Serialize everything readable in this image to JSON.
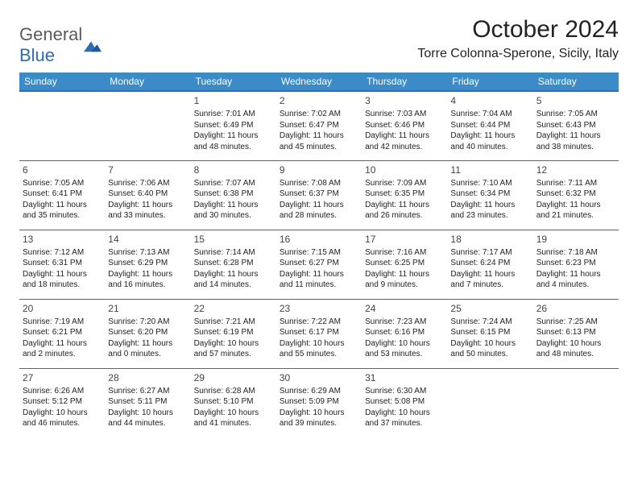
{
  "logo": {
    "word1": "General",
    "word2": "Blue"
  },
  "title": "October 2024",
  "location": "Torre Colonna-Sperone, Sicily, Italy",
  "colors": {
    "header_bg": "#3b8bc9",
    "border": "#2a6fb5",
    "logo_gray": "#5a5a5a",
    "logo_blue": "#2a6fb5",
    "text": "#222222",
    "bg": "#ffffff"
  },
  "dayHeaders": [
    "Sunday",
    "Monday",
    "Tuesday",
    "Wednesday",
    "Thursday",
    "Friday",
    "Saturday"
  ],
  "weeks": [
    [
      null,
      null,
      {
        "n": "1",
        "sr": "7:01 AM",
        "ss": "6:49 PM",
        "dl1": "Daylight: 11 hours",
        "dl2": "and 48 minutes."
      },
      {
        "n": "2",
        "sr": "7:02 AM",
        "ss": "6:47 PM",
        "dl1": "Daylight: 11 hours",
        "dl2": "and 45 minutes."
      },
      {
        "n": "3",
        "sr": "7:03 AM",
        "ss": "6:46 PM",
        "dl1": "Daylight: 11 hours",
        "dl2": "and 42 minutes."
      },
      {
        "n": "4",
        "sr": "7:04 AM",
        "ss": "6:44 PM",
        "dl1": "Daylight: 11 hours",
        "dl2": "and 40 minutes."
      },
      {
        "n": "5",
        "sr": "7:05 AM",
        "ss": "6:43 PM",
        "dl1": "Daylight: 11 hours",
        "dl2": "and 38 minutes."
      }
    ],
    [
      {
        "n": "6",
        "sr": "7:05 AM",
        "ss": "6:41 PM",
        "dl1": "Daylight: 11 hours",
        "dl2": "and 35 minutes."
      },
      {
        "n": "7",
        "sr": "7:06 AM",
        "ss": "6:40 PM",
        "dl1": "Daylight: 11 hours",
        "dl2": "and 33 minutes."
      },
      {
        "n": "8",
        "sr": "7:07 AM",
        "ss": "6:38 PM",
        "dl1": "Daylight: 11 hours",
        "dl2": "and 30 minutes."
      },
      {
        "n": "9",
        "sr": "7:08 AM",
        "ss": "6:37 PM",
        "dl1": "Daylight: 11 hours",
        "dl2": "and 28 minutes."
      },
      {
        "n": "10",
        "sr": "7:09 AM",
        "ss": "6:35 PM",
        "dl1": "Daylight: 11 hours",
        "dl2": "and 26 minutes."
      },
      {
        "n": "11",
        "sr": "7:10 AM",
        "ss": "6:34 PM",
        "dl1": "Daylight: 11 hours",
        "dl2": "and 23 minutes."
      },
      {
        "n": "12",
        "sr": "7:11 AM",
        "ss": "6:32 PM",
        "dl1": "Daylight: 11 hours",
        "dl2": "and 21 minutes."
      }
    ],
    [
      {
        "n": "13",
        "sr": "7:12 AM",
        "ss": "6:31 PM",
        "dl1": "Daylight: 11 hours",
        "dl2": "and 18 minutes."
      },
      {
        "n": "14",
        "sr": "7:13 AM",
        "ss": "6:29 PM",
        "dl1": "Daylight: 11 hours",
        "dl2": "and 16 minutes."
      },
      {
        "n": "15",
        "sr": "7:14 AM",
        "ss": "6:28 PM",
        "dl1": "Daylight: 11 hours",
        "dl2": "and 14 minutes."
      },
      {
        "n": "16",
        "sr": "7:15 AM",
        "ss": "6:27 PM",
        "dl1": "Daylight: 11 hours",
        "dl2": "and 11 minutes."
      },
      {
        "n": "17",
        "sr": "7:16 AM",
        "ss": "6:25 PM",
        "dl1": "Daylight: 11 hours",
        "dl2": "and 9 minutes."
      },
      {
        "n": "18",
        "sr": "7:17 AM",
        "ss": "6:24 PM",
        "dl1": "Daylight: 11 hours",
        "dl2": "and 7 minutes."
      },
      {
        "n": "19",
        "sr": "7:18 AM",
        "ss": "6:23 PM",
        "dl1": "Daylight: 11 hours",
        "dl2": "and 4 minutes."
      }
    ],
    [
      {
        "n": "20",
        "sr": "7:19 AM",
        "ss": "6:21 PM",
        "dl1": "Daylight: 11 hours",
        "dl2": "and 2 minutes."
      },
      {
        "n": "21",
        "sr": "7:20 AM",
        "ss": "6:20 PM",
        "dl1": "Daylight: 11 hours",
        "dl2": "and 0 minutes."
      },
      {
        "n": "22",
        "sr": "7:21 AM",
        "ss": "6:19 PM",
        "dl1": "Daylight: 10 hours",
        "dl2": "and 57 minutes."
      },
      {
        "n": "23",
        "sr": "7:22 AM",
        "ss": "6:17 PM",
        "dl1": "Daylight: 10 hours",
        "dl2": "and 55 minutes."
      },
      {
        "n": "24",
        "sr": "7:23 AM",
        "ss": "6:16 PM",
        "dl1": "Daylight: 10 hours",
        "dl2": "and 53 minutes."
      },
      {
        "n": "25",
        "sr": "7:24 AM",
        "ss": "6:15 PM",
        "dl1": "Daylight: 10 hours",
        "dl2": "and 50 minutes."
      },
      {
        "n": "26",
        "sr": "7:25 AM",
        "ss": "6:13 PM",
        "dl1": "Daylight: 10 hours",
        "dl2": "and 48 minutes."
      }
    ],
    [
      {
        "n": "27",
        "sr": "6:26 AM",
        "ss": "5:12 PM",
        "dl1": "Daylight: 10 hours",
        "dl2": "and 46 minutes."
      },
      {
        "n": "28",
        "sr": "6:27 AM",
        "ss": "5:11 PM",
        "dl1": "Daylight: 10 hours",
        "dl2": "and 44 minutes."
      },
      {
        "n": "29",
        "sr": "6:28 AM",
        "ss": "5:10 PM",
        "dl1": "Daylight: 10 hours",
        "dl2": "and 41 minutes."
      },
      {
        "n": "30",
        "sr": "6:29 AM",
        "ss": "5:09 PM",
        "dl1": "Daylight: 10 hours",
        "dl2": "and 39 minutes."
      },
      {
        "n": "31",
        "sr": "6:30 AM",
        "ss": "5:08 PM",
        "dl1": "Daylight: 10 hours",
        "dl2": "and 37 minutes."
      },
      null,
      null
    ]
  ],
  "labels": {
    "sunrise": "Sunrise: ",
    "sunset": "Sunset: "
  }
}
